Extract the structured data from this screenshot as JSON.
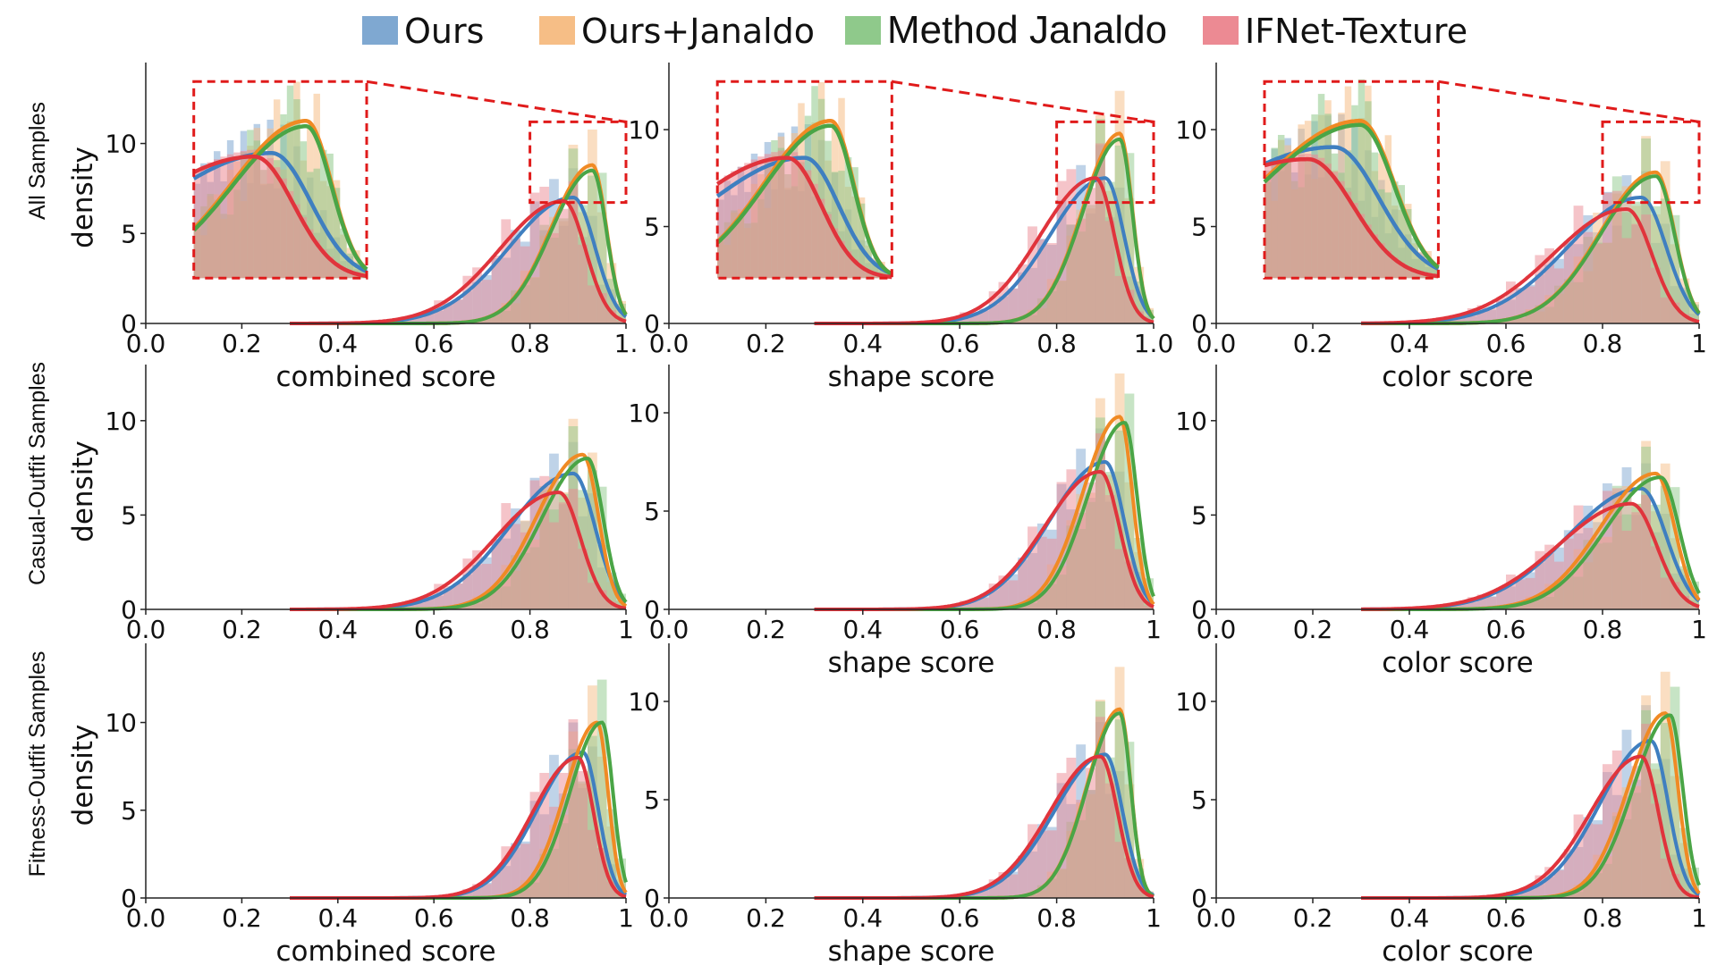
{
  "legend": [
    {
      "label": "Ours",
      "color": "#7fa8d1"
    },
    {
      "label": "Ours+Janaldo",
      "color": "#f6be86"
    },
    {
      "label": "Method Janaldo",
      "color": "#8fc98b"
    },
    {
      "label": "IFNet-Texture",
      "color": "#ec8a93"
    }
  ],
  "colors": {
    "ours": "#3f7fc0",
    "ours_janaldo": "#f08a24",
    "method_janaldo": "#4aa546",
    "ifnet": "#e0343c",
    "hist_overlap": "#b0734a",
    "zoom_box": "#e01b1b"
  },
  "row_labels": [
    "All Samples",
    "Casual-Outfit Samples",
    "Fitness-Outfit Samples"
  ],
  "y_axis_label": "density",
  "chart_data": [
    {
      "type": "area",
      "panel": "all-combined",
      "xlabel": "combined score",
      "ylabel": "density",
      "xlim": [
        0,
        1
      ],
      "ylim": [
        0,
        14
      ],
      "xticks": [
        "0.0",
        "0.2",
        "0.4",
        "0.6",
        "0.8",
        "1."
      ],
      "yticks": [
        "0",
        "5",
        "10"
      ],
      "zoom_inset": true,
      "series": [
        {
          "name": "Ours",
          "peak": 0.89,
          "height": 7.0,
          "spread": 0.07
        },
        {
          "name": "Ours+Janaldo",
          "peak": 0.93,
          "height": 8.8,
          "spread": 0.045
        },
        {
          "name": "Method Janaldo",
          "peak": 0.93,
          "height": 8.5,
          "spread": 0.045
        },
        {
          "name": "IFNet-Texture",
          "peak": 0.87,
          "height": 6.8,
          "spread": 0.07
        }
      ]
    },
    {
      "type": "area",
      "panel": "all-shape",
      "xlabel": "shape score",
      "ylabel": "",
      "xlim": [
        0,
        1
      ],
      "ylim": [
        0,
        13
      ],
      "xticks": [
        "0.0",
        "0.2",
        "0.4",
        "0.6",
        "0.8",
        "1.0"
      ],
      "yticks": [
        "0",
        "5",
        "10"
      ],
      "zoom_inset": true,
      "series": [
        {
          "name": "Ours",
          "peak": 0.9,
          "height": 7.5,
          "spread": 0.06
        },
        {
          "name": "Ours+Janaldo",
          "peak": 0.93,
          "height": 9.8,
          "spread": 0.04
        },
        {
          "name": "Method Janaldo",
          "peak": 0.93,
          "height": 9.5,
          "spread": 0.04
        },
        {
          "name": "IFNet-Texture",
          "peak": 0.88,
          "height": 7.5,
          "spread": 0.06
        }
      ]
    },
    {
      "type": "area",
      "panel": "all-color",
      "xlabel": "color score",
      "ylabel": "",
      "xlim": [
        0,
        1
      ],
      "ylim": [
        0,
        13
      ],
      "xticks": [
        "0.0",
        "0.2",
        "0.4",
        "0.6",
        "0.8",
        "1"
      ],
      "yticks": [
        "0",
        "5",
        "10"
      ],
      "zoom_inset": true,
      "series": [
        {
          "name": "Ours",
          "peak": 0.88,
          "height": 6.5,
          "spread": 0.08
        },
        {
          "name": "Ours+Janaldo",
          "peak": 0.91,
          "height": 7.8,
          "spread": 0.06
        },
        {
          "name": "Method Janaldo",
          "peak": 0.91,
          "height": 7.6,
          "spread": 0.06
        },
        {
          "name": "IFNet-Texture",
          "peak": 0.85,
          "height": 5.9,
          "spread": 0.08
        }
      ]
    },
    {
      "type": "area",
      "panel": "casual-combined",
      "xlabel": "",
      "ylabel": "density",
      "xlim": [
        0,
        1
      ],
      "ylim": [
        0,
        12.5
      ],
      "xticks": [
        "0.0",
        "0.2",
        "0.4",
        "0.6",
        "0.8",
        "1"
      ],
      "yticks": [
        "0",
        "5",
        "10"
      ],
      "zoom_inset": false,
      "series": [
        {
          "name": "Ours",
          "peak": 0.89,
          "height": 7.2,
          "spread": 0.07
        },
        {
          "name": "Ours+Janaldo",
          "peak": 0.91,
          "height": 8.2,
          "spread": 0.05
        },
        {
          "name": "Method Janaldo",
          "peak": 0.92,
          "height": 8.0,
          "spread": 0.05
        },
        {
          "name": "IFNet-Texture",
          "peak": 0.86,
          "height": 6.2,
          "spread": 0.07
        }
      ]
    },
    {
      "type": "area",
      "panel": "casual-shape",
      "xlabel": "shape score",
      "ylabel": "",
      "xlim": [
        0,
        1
      ],
      "ylim": [
        0,
        12
      ],
      "xticks": [
        "0.0",
        "0.2",
        "0.4",
        "0.6",
        "0.8",
        "1"
      ],
      "yticks": [
        "0",
        "5",
        "10"
      ],
      "zoom_inset": false,
      "series": [
        {
          "name": "Ours",
          "peak": 0.9,
          "height": 7.5,
          "spread": 0.06
        },
        {
          "name": "Ours+Janaldo",
          "peak": 0.93,
          "height": 9.8,
          "spread": 0.04
        },
        {
          "name": "Method Janaldo",
          "peak": 0.94,
          "height": 9.5,
          "spread": 0.04
        },
        {
          "name": "IFNet-Texture",
          "peak": 0.89,
          "height": 7.0,
          "spread": 0.06
        }
      ]
    },
    {
      "type": "area",
      "panel": "casual-color",
      "xlabel": "color score",
      "ylabel": "",
      "xlim": [
        0,
        1
      ],
      "ylim": [
        0,
        12.5
      ],
      "xticks": [
        "0.0",
        "0.2",
        "0.4",
        "0.6",
        "0.8",
        "1"
      ],
      "yticks": [
        "0",
        "5",
        "10"
      ],
      "zoom_inset": false,
      "series": [
        {
          "name": "Ours",
          "peak": 0.88,
          "height": 6.4,
          "spread": 0.08
        },
        {
          "name": "Ours+Janaldo",
          "peak": 0.91,
          "height": 7.2,
          "spread": 0.06
        },
        {
          "name": "Method Janaldo",
          "peak": 0.92,
          "height": 7.0,
          "spread": 0.06
        },
        {
          "name": "IFNet-Texture",
          "peak": 0.86,
          "height": 5.6,
          "spread": 0.08
        }
      ]
    },
    {
      "type": "area",
      "panel": "fitness-combined",
      "xlabel": "combined score",
      "ylabel": "density",
      "xlim": [
        0,
        1
      ],
      "ylim": [
        0,
        14
      ],
      "xticks": [
        "0.0",
        "0.2",
        "0.4",
        "0.6",
        "0.8",
        "1"
      ],
      "yticks": [
        "0",
        "5",
        "10"
      ],
      "zoom_inset": false,
      "series": [
        {
          "name": "Ours",
          "peak": 0.91,
          "height": 8.3,
          "spread": 0.05
        },
        {
          "name": "Ours+Janaldo",
          "peak": 0.94,
          "height": 10.0,
          "spread": 0.035
        },
        {
          "name": "Method Janaldo",
          "peak": 0.95,
          "height": 10.0,
          "spread": 0.035
        },
        {
          "name": "IFNet-Texture",
          "peak": 0.9,
          "height": 8.0,
          "spread": 0.05
        }
      ]
    },
    {
      "type": "area",
      "panel": "fitness-shape",
      "xlabel": "shape score",
      "ylabel": "",
      "xlim": [
        0,
        1
      ],
      "ylim": [
        0,
        12.5
      ],
      "xticks": [
        "0.0",
        "0.2",
        "0.4",
        "0.6",
        "0.8",
        "1"
      ],
      "yticks": [
        "0",
        "5",
        "10"
      ],
      "zoom_inset": false,
      "series": [
        {
          "name": "Ours",
          "peak": 0.9,
          "height": 7.3,
          "spread": 0.055
        },
        {
          "name": "Ours+Janaldo",
          "peak": 0.93,
          "height": 9.6,
          "spread": 0.035
        },
        {
          "name": "Method Janaldo",
          "peak": 0.93,
          "height": 9.4,
          "spread": 0.035
        },
        {
          "name": "IFNet-Texture",
          "peak": 0.89,
          "height": 7.2,
          "spread": 0.055
        }
      ]
    },
    {
      "type": "area",
      "panel": "fitness-color",
      "xlabel": "color score",
      "ylabel": "",
      "xlim": [
        0,
        1
      ],
      "ylim": [
        0,
        12.5
      ],
      "xticks": [
        "0.0",
        "0.2",
        "0.4",
        "0.6",
        "0.8",
        "1"
      ],
      "yticks": [
        "0",
        "5",
        "10"
      ],
      "zoom_inset": false,
      "series": [
        {
          "name": "Ours",
          "peak": 0.9,
          "height": 8.0,
          "spread": 0.055
        },
        {
          "name": "Ours+Janaldo",
          "peak": 0.93,
          "height": 9.4,
          "spread": 0.04
        },
        {
          "name": "Method Janaldo",
          "peak": 0.94,
          "height": 9.3,
          "spread": 0.04
        },
        {
          "name": "IFNet-Texture",
          "peak": 0.88,
          "height": 7.2,
          "spread": 0.055
        }
      ]
    }
  ]
}
